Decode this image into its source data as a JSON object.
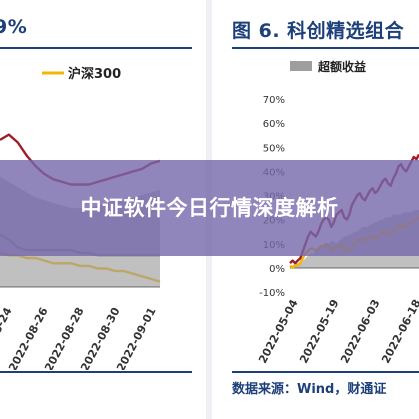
{
  "overlay": {
    "headline": "中证软件今日行情深度解析"
  },
  "chart_data": [
    {
      "type": "line",
      "title": "9%",
      "legend": [
        "沪深300"
      ],
      "xticks": [
        "2022-08-24",
        "2022-08-26",
        "2022-08-28",
        "2022-08-30",
        "2022-09-01"
      ],
      "series": [
        {
          "name": "沪深300",
          "color": "#f2b705",
          "x": [
            0,
            1,
            2,
            3,
            4,
            5,
            6,
            7,
            8,
            9,
            10,
            11,
            12,
            13,
            14,
            15,
            16,
            17,
            18
          ],
          "y": [
            13,
            12,
            12,
            11,
            11,
            10,
            9,
            9,
            9,
            8,
            8,
            7,
            7,
            6,
            6,
            5,
            4,
            3,
            2
          ]
        },
        {
          "color": "#a11c2a",
          "x": [
            0,
            1,
            2,
            3,
            4,
            5,
            6,
            7,
            8,
            9,
            10,
            11,
            12,
            13,
            14,
            15,
            16,
            17,
            18
          ],
          "y": [
            56,
            58,
            55,
            50,
            46,
            43,
            41,
            40,
            39,
            39,
            39,
            40,
            41,
            42,
            43,
            44,
            45,
            47,
            48
          ]
        },
        {
          "color": "#8c8c8c",
          "x": [
            0,
            1,
            2,
            3,
            4,
            5,
            6,
            7,
            8,
            9,
            10,
            11,
            12,
            13,
            14,
            15,
            16,
            17,
            18
          ],
          "y": [
            20,
            18,
            15,
            14,
            14,
            14,
            14,
            14,
            14,
            13,
            13,
            12,
            12,
            12,
            12,
            12,
            12,
            12,
            12
          ]
        },
        {
          "color": "#9e9e9e",
          "area": true,
          "x": [
            0,
            1,
            2,
            3,
            4,
            5,
            6,
            7,
            8,
            9,
            10,
            11,
            12,
            13,
            14,
            15,
            16,
            17,
            18
          ],
          "y": [
            42,
            40,
            38,
            36,
            34,
            33,
            32,
            31,
            30,
            30,
            30,
            31,
            32,
            33,
            33,
            34,
            35,
            36,
            37
          ]
        }
      ],
      "ylim": [
        -5,
        75
      ]
    },
    {
      "type": "line",
      "title": "图 6. 科创精选组合",
      "legend": [
        "超额收益"
      ],
      "yticks": [
        "70%",
        "60%",
        "50%",
        "40%",
        "30%",
        "20%",
        "10%",
        "0%",
        "-10%"
      ],
      "ytick_values": [
        70,
        60,
        50,
        40,
        30,
        20,
        10,
        0,
        -10
      ],
      "xticks": [
        "2022-05-04",
        "2022-05-19",
        "2022-06-03",
        "2022-06-18"
      ],
      "ylim": [
        -10,
        70
      ],
      "series": [
        {
          "name": "超额收益",
          "color": "#9e9e9e",
          "area": true,
          "x": [
            0,
            1,
            2,
            3,
            4,
            5,
            6,
            7,
            8,
            9,
            10,
            11,
            12,
            13,
            14,
            15,
            16,
            17,
            18,
            19,
            20,
            21,
            22,
            23,
            24,
            25,
            26,
            27,
            28,
            29,
            30,
            31,
            32,
            33,
            34,
            35,
            36,
            37,
            38,
            39,
            40,
            41,
            42,
            43,
            44,
            45,
            46,
            47,
            48,
            49,
            50
          ],
          "y": [
            0,
            1,
            2,
            2,
            2,
            3,
            4,
            5,
            6,
            6,
            7,
            8,
            8,
            9,
            10,
            10,
            11,
            11,
            10,
            11,
            12,
            13,
            13,
            14,
            14,
            15,
            15,
            16,
            17,
            17,
            17,
            18,
            18,
            19,
            19,
            20,
            20,
            21,
            21,
            21,
            22,
            22,
            22,
            22,
            23,
            23,
            23,
            23,
            24,
            24,
            24
          ]
        },
        {
          "color": "#a11c2a",
          "x": [
            0,
            1,
            2,
            3,
            4,
            5,
            6,
            7,
            8,
            9,
            10,
            11,
            12,
            13,
            14,
            15,
            16,
            17,
            18,
            19,
            20,
            21,
            22,
            23,
            24,
            25,
            26,
            27,
            28,
            29,
            30,
            31,
            32,
            33,
            34,
            35,
            36,
            37,
            38,
            39,
            40,
            41,
            42,
            43,
            44,
            45,
            46,
            47,
            48,
            49,
            50
          ],
          "y": [
            2,
            3,
            2,
            3,
            4,
            7,
            10,
            13,
            15,
            14,
            13,
            15,
            18,
            20,
            21,
            20,
            17,
            19,
            22,
            23,
            24,
            21,
            20,
            22,
            26,
            28,
            30,
            31,
            29,
            28,
            30,
            32,
            33,
            31,
            32,
            34,
            36,
            37,
            35,
            34,
            37,
            39,
            42,
            43,
            41,
            40,
            42,
            44,
            46,
            45,
            47
          ]
        },
        {
          "color": "#f2b705",
          "x": [
            0,
            1,
            2,
            3,
            4,
            5,
            6,
            7,
            8,
            9,
            10,
            11,
            12,
            13,
            14,
            15,
            16,
            17,
            18,
            19,
            20,
            21,
            22,
            23,
            24,
            25,
            26,
            27,
            28,
            29,
            30,
            31,
            32,
            33,
            34,
            35,
            36,
            37,
            38,
            39,
            40,
            41,
            42,
            43,
            44,
            45,
            46,
            47,
            48,
            49,
            50
          ],
          "y": [
            1,
            0,
            1,
            1,
            2,
            4,
            6,
            7,
            8,
            8,
            7,
            8,
            9,
            9,
            10,
            9,
            7,
            8,
            9,
            9,
            10,
            7,
            7,
            8,
            9,
            10,
            11,
            12,
            12,
            11,
            12,
            13,
            13,
            12,
            13,
            14,
            15,
            15,
            14,
            14,
            15,
            16,
            17,
            18,
            17,
            17,
            18,
            19,
            20,
            20,
            21
          ]
        }
      ]
    }
  ],
  "source": {
    "text": "数据来源：Wind，财通证"
  }
}
